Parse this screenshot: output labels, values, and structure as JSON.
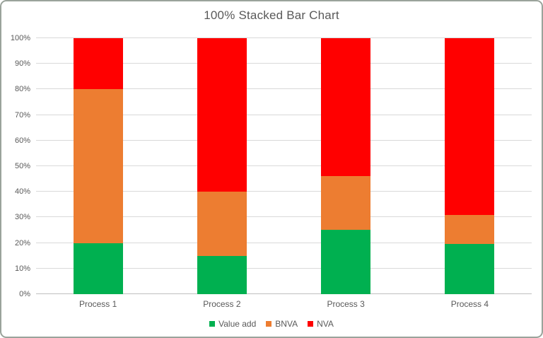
{
  "window": {
    "background_color": "#FFFFFF",
    "border_color": "#9AA39B"
  },
  "chart_data": {
    "type": "bar",
    "stacked": true,
    "percent_stacked": true,
    "title": "100% Stacked Bar Chart",
    "xlabel": "",
    "ylabel": "",
    "categories": [
      "Process 1",
      "Process 2",
      "Process 3",
      "Process 4"
    ],
    "series": [
      {
        "name": "Value add",
        "color": "#00B050",
        "values": [
          20,
          15,
          25,
          19.5
        ]
      },
      {
        "name": "BNVA",
        "color": "#ED7D31",
        "values": [
          60,
          25,
          21,
          11.5
        ]
      },
      {
        "name": "NVA",
        "color": "#FF0000",
        "values": [
          20,
          60,
          54,
          69
        ]
      }
    ],
    "y_axis": {
      "min": 0,
      "max": 100,
      "step": 10,
      "tick_labels": [
        "0%",
        "10%",
        "20%",
        "30%",
        "40%",
        "50%",
        "60%",
        "70%",
        "80%",
        "90%",
        "100%"
      ]
    },
    "legend": {
      "position": "bottom",
      "entries": [
        "Value add",
        "BNVA",
        "NVA"
      ]
    },
    "grid": true,
    "styles": {
      "text_color": "#595959",
      "gridline_color": "#D9D9D9",
      "axis_line_color": "#BFBFBF"
    }
  }
}
